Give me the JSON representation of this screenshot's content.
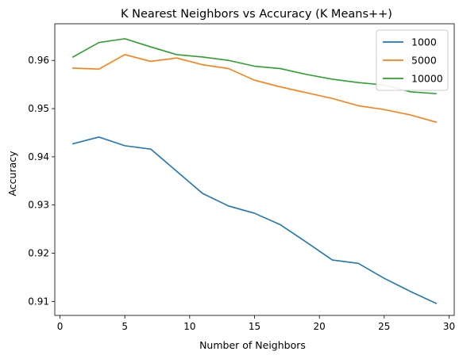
{
  "chart_data": {
    "type": "line",
    "title": "K Nearest Neighbors vs Accuracy (K Means++)",
    "xlabel": "Number of Neighbors",
    "ylabel": "Accuracy",
    "xlim": [
      -0.4,
      30.4
    ],
    "ylim": [
      0.9071,
      0.9676
    ],
    "xticks": [
      0,
      5,
      10,
      15,
      20,
      25,
      30
    ],
    "yticks": [
      0.91,
      0.92,
      0.93,
      0.94,
      0.95,
      0.96
    ],
    "ytick_labels": [
      "0.91",
      "0.92",
      "0.93",
      "0.94",
      "0.95",
      "0.96"
    ],
    "grid": false,
    "legend_position": "top-right",
    "x": [
      1,
      3,
      5,
      7,
      9,
      11,
      13,
      15,
      17,
      19,
      21,
      23,
      25,
      27,
      29
    ],
    "series": [
      {
        "name": "1000",
        "color": "#1f77b4",
        "values": [
          0.9427,
          0.9441,
          0.9423,
          0.9416,
          0.937,
          0.9324,
          0.9298,
          0.9283,
          0.9259,
          0.9223,
          0.9186,
          0.9179,
          0.9148,
          0.9121,
          0.9096
        ]
      },
      {
        "name": "5000",
        "color": "#ff7f0e",
        "values": [
          0.9584,
          0.9582,
          0.9612,
          0.9598,
          0.9605,
          0.9591,
          0.9583,
          0.9559,
          0.9545,
          0.9533,
          0.9521,
          0.9506,
          0.9498,
          0.9487,
          0.9472
        ]
      },
      {
        "name": "10000",
        "color": "#2ca02c",
        "values": [
          0.9607,
          0.9637,
          0.9645,
          0.9628,
          0.9612,
          0.9607,
          0.96,
          0.9588,
          0.9583,
          0.9571,
          0.9561,
          0.9554,
          0.9549,
          0.9535,
          0.9531
        ]
      }
    ]
  }
}
